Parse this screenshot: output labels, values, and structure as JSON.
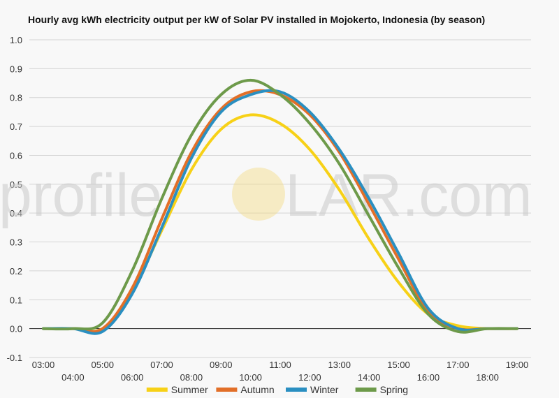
{
  "watermark": {
    "left": "profile",
    "right": "LAR.com"
  },
  "chart_data": {
    "type": "line",
    "title": "Hourly avg kWh electricity output per kW of Solar PV installed in Mojokerto, Indonesia (by season)",
    "xlabel": "",
    "ylabel": "",
    "x": [
      "03:00",
      "04:00",
      "05:00",
      "06:00",
      "07:00",
      "08:00",
      "09:00",
      "10:00",
      "11:00",
      "12:00",
      "13:00",
      "14:00",
      "15:00",
      "16:00",
      "17:00",
      "18:00",
      "19:00"
    ],
    "ylim": [
      -0.1,
      1.0
    ],
    "yticks": [
      "-0.1",
      "0.0",
      "0.1",
      "0.2",
      "0.3",
      "0.4",
      "0.5",
      "0.6",
      "0.7",
      "0.8",
      "0.9",
      "1.0"
    ],
    "grid": true,
    "legend": "bottom",
    "series": [
      {
        "name": "Summer",
        "color": "#f7d117",
        "values": [
          0.0,
          0.0,
          0.0,
          0.13,
          0.34,
          0.55,
          0.69,
          0.74,
          0.71,
          0.62,
          0.48,
          0.31,
          0.16,
          0.05,
          0.01,
          0.0,
          0.0
        ]
      },
      {
        "name": "Autumn",
        "color": "#e26f28",
        "values": [
          0.0,
          0.0,
          0.0,
          0.14,
          0.38,
          0.61,
          0.76,
          0.82,
          0.81,
          0.74,
          0.61,
          0.43,
          0.24,
          0.06,
          0.0,
          0.0,
          0.0
        ]
      },
      {
        "name": "Winter",
        "color": "#2a8fc1",
        "values": [
          0.0,
          0.0,
          -0.01,
          0.12,
          0.35,
          0.59,
          0.75,
          0.81,
          0.82,
          0.75,
          0.62,
          0.45,
          0.26,
          0.07,
          0.0,
          0.0,
          0.0
        ]
      },
      {
        "name": "Spring",
        "color": "#6d9a4a",
        "values": [
          0.0,
          0.0,
          0.02,
          0.2,
          0.45,
          0.67,
          0.81,
          0.86,
          0.81,
          0.71,
          0.57,
          0.39,
          0.21,
          0.05,
          -0.01,
          0.0,
          0.0
        ]
      }
    ]
  }
}
